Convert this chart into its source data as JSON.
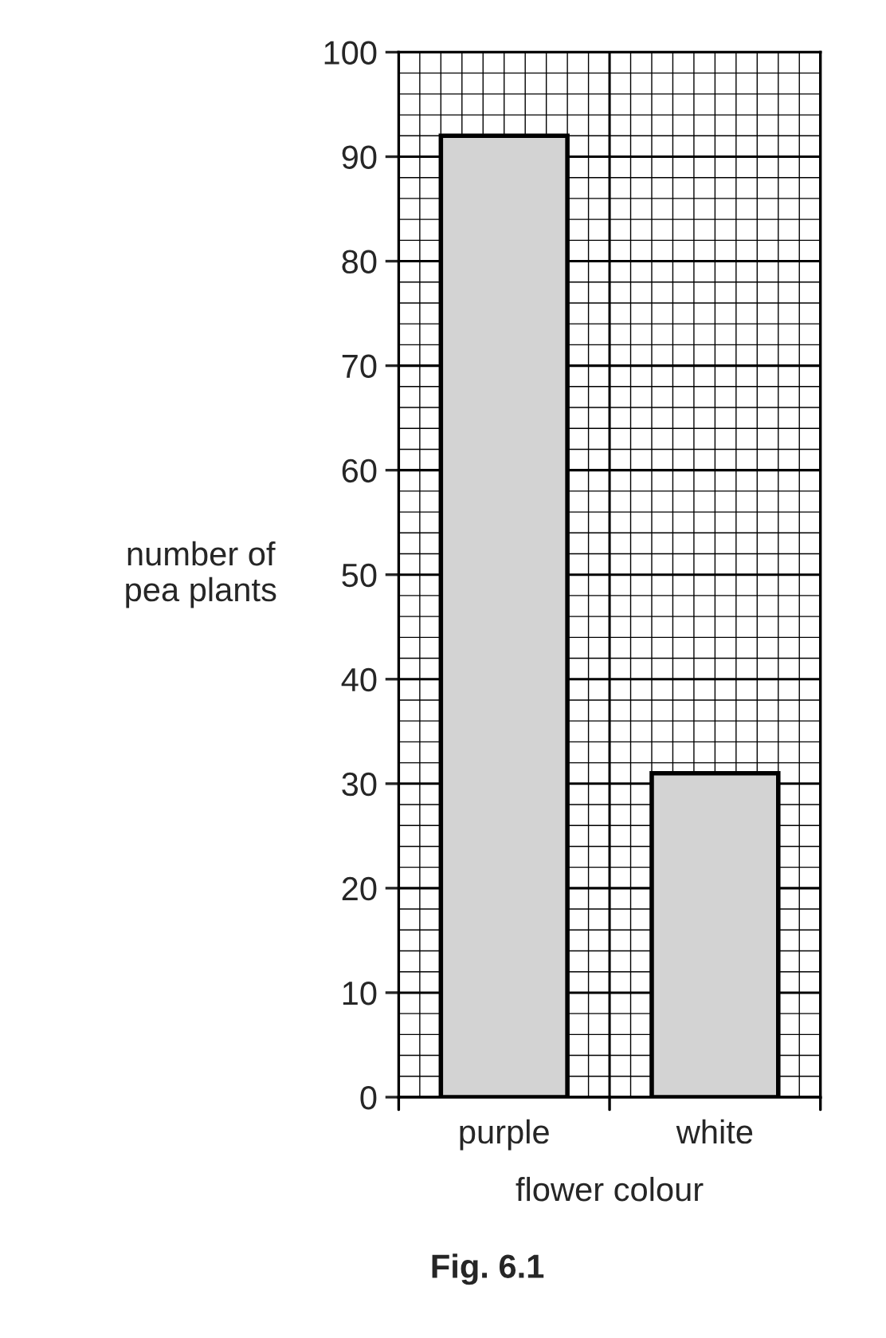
{
  "chart_data": {
    "type": "bar",
    "xlabel": "flower colour",
    "ylabel": "number of\npea plants",
    "categories": [
      "purple",
      "white"
    ],
    "values": [
      92,
      31
    ],
    "color": "#d3d3d3",
    "ylim": [
      0,
      100
    ],
    "yticks": [
      0,
      10,
      20,
      30,
      40,
      50,
      60,
      70,
      80,
      90,
      100
    ],
    "grid": true,
    "annotations": [
      "Fig. 6.1"
    ]
  }
}
